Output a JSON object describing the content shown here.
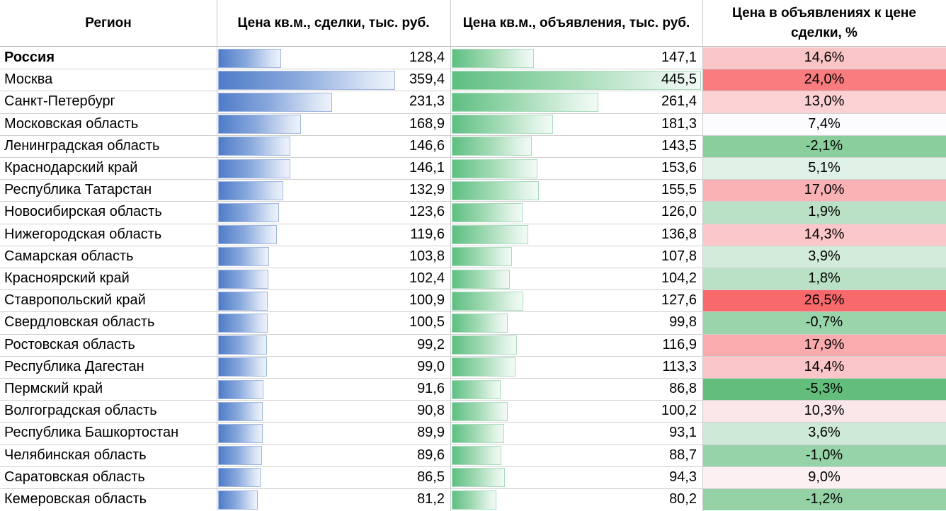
{
  "headers": {
    "region": "Регион",
    "deals": "Цена кв.м., сделки, тыс. руб.",
    "listings": "Цена кв.м., объявления, тыс. руб.",
    "ratio": "Цена в объявлениях к цене сделки, %"
  },
  "chart_data": {
    "type": "table",
    "columns": [
      "Регион",
      "Цена кв.м., сделки, тыс. руб.",
      "Цена кв.м., объявления, тыс. руб.",
      "Цена в объявлениях к цене сделки, %"
    ],
    "rows": [
      {
        "region": "Россия",
        "deals": "128,4",
        "listings": "147,1",
        "ratio": "14,6%",
        "deals_value": 128.4,
        "listings_value": 147.1,
        "ratio_value": 14.6
      },
      {
        "region": "Москва",
        "deals": "359,4",
        "listings": "445,5",
        "ratio": "24,0%",
        "deals_value": 359.4,
        "listings_value": 445.5,
        "ratio_value": 24.0
      },
      {
        "region": "Санкт-Петербург",
        "deals": "231,3",
        "listings": "261,4",
        "ratio": "13,0%",
        "deals_value": 231.3,
        "listings_value": 261.4,
        "ratio_value": 13.0
      },
      {
        "region": "Московская область",
        "deals": "168,9",
        "listings": "181,3",
        "ratio": "7,4%",
        "deals_value": 168.9,
        "listings_value": 181.3,
        "ratio_value": 7.4
      },
      {
        "region": "Ленинградская область",
        "deals": "146,6",
        "listings": "143,5",
        "ratio": "-2,1%",
        "deals_value": 146.6,
        "listings_value": 143.5,
        "ratio_value": -2.1
      },
      {
        "region": "Краснодарский край",
        "deals": "146,1",
        "listings": "153,6",
        "ratio": "5,1%",
        "deals_value": 146.1,
        "listings_value": 153.6,
        "ratio_value": 5.1
      },
      {
        "region": "Республика Татарстан",
        "deals": "132,9",
        "listings": "155,5",
        "ratio": "17,0%",
        "deals_value": 132.9,
        "listings_value": 155.5,
        "ratio_value": 17.0
      },
      {
        "region": "Новосибирская область",
        "deals": "123,6",
        "listings": "126,0",
        "ratio": "1,9%",
        "deals_value": 123.6,
        "listings_value": 126.0,
        "ratio_value": 1.9
      },
      {
        "region": "Нижегородская область",
        "deals": "119,6",
        "listings": "136,8",
        "ratio": "14,3%",
        "deals_value": 119.6,
        "listings_value": 136.8,
        "ratio_value": 14.3
      },
      {
        "region": "Самарская область",
        "deals": "103,8",
        "listings": "107,8",
        "ratio": "3,9%",
        "deals_value": 103.8,
        "listings_value": 107.8,
        "ratio_value": 3.9
      },
      {
        "region": "Красноярский край",
        "deals": "102,4",
        "listings": "104,2",
        "ratio": "1,8%",
        "deals_value": 102.4,
        "listings_value": 104.2,
        "ratio_value": 1.8
      },
      {
        "region": "Ставропольский край",
        "deals": "100,9",
        "listings": "127,6",
        "ratio": "26,5%",
        "deals_value": 100.9,
        "listings_value": 127.6,
        "ratio_value": 26.5
      },
      {
        "region": "Свердловская область",
        "deals": "100,5",
        "listings": "99,8",
        "ratio": "-0,7%",
        "deals_value": 100.5,
        "listings_value": 99.8,
        "ratio_value": -0.7
      },
      {
        "region": "Ростовская область",
        "deals": "99,2",
        "listings": "116,9",
        "ratio": "17,9%",
        "deals_value": 99.2,
        "listings_value": 116.9,
        "ratio_value": 17.9
      },
      {
        "region": "Республика Дагестан",
        "deals": "99,0",
        "listings": "113,3",
        "ratio": "14,4%",
        "deals_value": 99.0,
        "listings_value": 113.3,
        "ratio_value": 14.4
      },
      {
        "region": "Пермский край",
        "deals": "91,6",
        "listings": "86,8",
        "ratio": "-5,3%",
        "deals_value": 91.6,
        "listings_value": 86.8,
        "ratio_value": -5.3
      },
      {
        "region": "Волгоградская область",
        "deals": "90,8",
        "listings": "100,2",
        "ratio": "10,3%",
        "deals_value": 90.8,
        "listings_value": 100.2,
        "ratio_value": 10.3
      },
      {
        "region": "Республика Башкортостан",
        "deals": "89,9",
        "listings": "93,1",
        "ratio": "3,6%",
        "deals_value": 89.9,
        "listings_value": 93.1,
        "ratio_value": 3.6
      },
      {
        "region": "Челябинская область",
        "deals": "89,6",
        "listings": "88,7",
        "ratio": "-1,0%",
        "deals_value": 89.6,
        "listings_value": 88.7,
        "ratio_value": -1.0
      },
      {
        "region": "Саратовская область",
        "deals": "86,5",
        "listings": "94,3",
        "ratio": "9,0%",
        "deals_value": 86.5,
        "listings_value": 94.3,
        "ratio_value": 9.0
      },
      {
        "region": "Кемеровская область",
        "deals": "81,2",
        "listings": "80,2",
        "ratio": "-1,2%",
        "deals_value": 81.2,
        "listings_value": 80.2,
        "ratio_value": -1.2
      }
    ],
    "deals_max": 359.4,
    "listings_max": 445.5,
    "ratio_min": -5.3,
    "ratio_max": 26.5
  },
  "colors": {
    "deals_bar": "#4e7cc7",
    "listings_bar": "#5ebf82",
    "positive_scale": "#f8696b",
    "negative_scale": "#63be7b",
    "neutral": "#fcfcff"
  }
}
